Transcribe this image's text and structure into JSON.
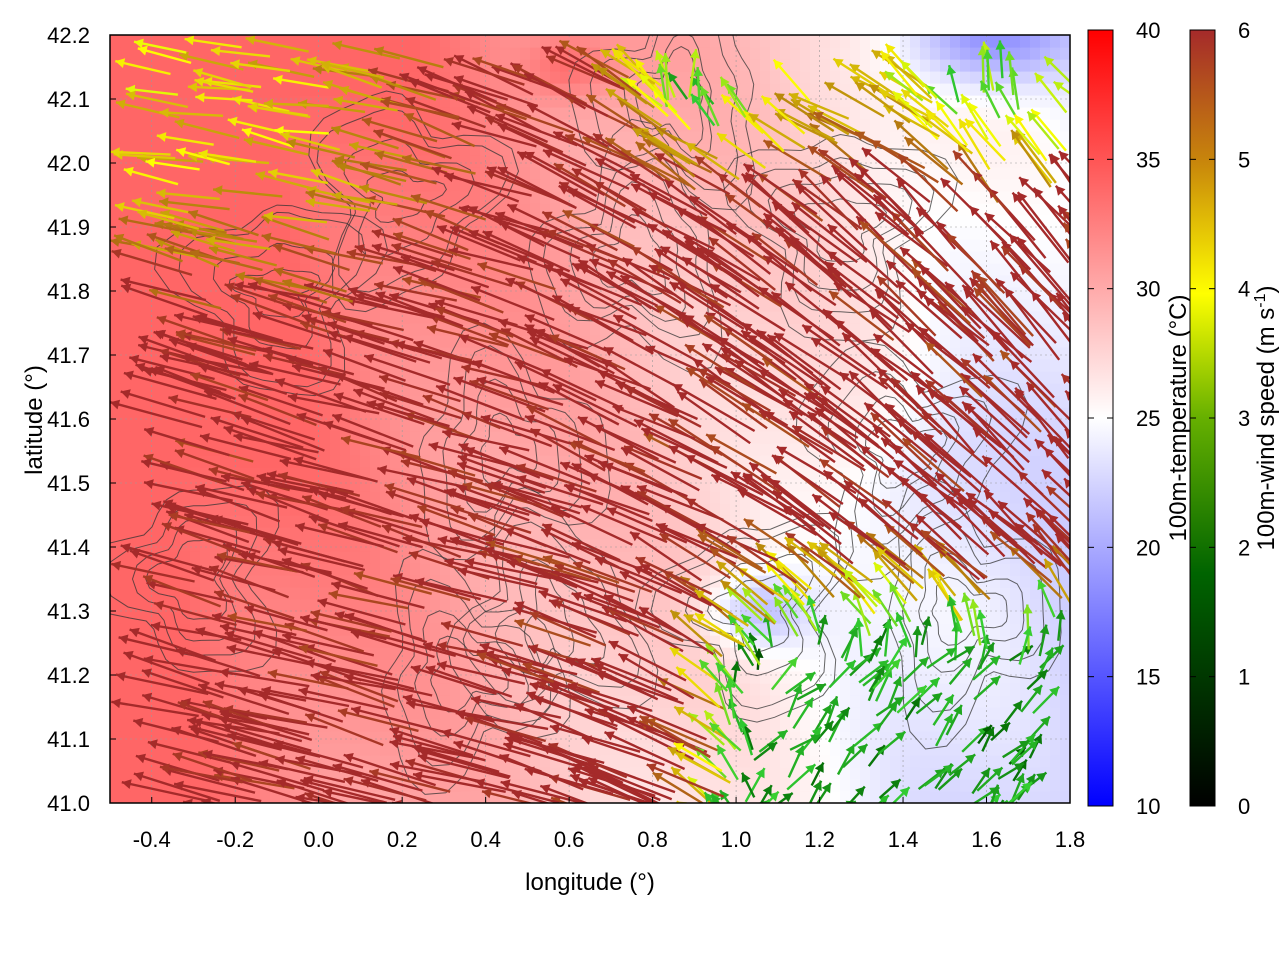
{
  "chart_data": {
    "type": "heatmap",
    "title": "",
    "xlabel": "longitude (°)",
    "ylabel": "latitude (°)",
    "xlim": [
      -0.5,
      1.8
    ],
    "ylim": [
      41.0,
      42.2
    ],
    "xticks": [
      "-0.4",
      "-0.2",
      "0.0",
      "0.2",
      "0.4",
      "0.6",
      "0.8",
      "1.0",
      "1.2",
      "1.4",
      "1.6",
      "1.8"
    ],
    "yticks": [
      "41.0",
      "41.1",
      "41.2",
      "41.3",
      "41.4",
      "41.5",
      "41.6",
      "41.7",
      "41.8",
      "41.9",
      "42.0",
      "42.1",
      "42.2"
    ],
    "grid": true,
    "layers": [
      "100m-temperature field (color shading)",
      "terrain elevation contours (dark gray lines)",
      "100m wind vectors colored by speed"
    ],
    "colorbars": [
      {
        "label": "100m-temperature (°C)",
        "range": [
          10,
          40
        ],
        "ticks": [
          "10",
          "15",
          "20",
          "25",
          "30",
          "35",
          "40"
        ],
        "colors": [
          "#0000ff",
          "#ffffff",
          "#ff0000"
        ]
      },
      {
        "label_prefix": "100m-wind speed (m s",
        "label_sup": "-1",
        "label_suffix": ")",
        "range": [
          0,
          6
        ],
        "ticks": [
          "0",
          "1",
          "2",
          "3",
          "4",
          "5",
          "6"
        ],
        "colors": [
          "#000000",
          "#006400",
          "#32cd32",
          "#ffff00",
          "#b8860b",
          "#a52a2a"
        ]
      }
    ],
    "temperature_regions": [
      {
        "region": "west and north-west",
        "temperature_c": 32
      },
      {
        "region": "central",
        "temperature_c": 27
      },
      {
        "region": "south-east lowland",
        "temperature_c": 22
      },
      {
        "region": "north-east corner",
        "temperature_c": 16
      }
    ],
    "wind_regimes": [
      {
        "region": "south-west",
        "direction": "toward west-north-west",
        "speed_ms": 6
      },
      {
        "region": "central",
        "direction": "toward north-west",
        "speed_ms": 6
      },
      {
        "region": "north-west",
        "direction": "toward west",
        "speed_ms": 4
      },
      {
        "region": "south-east",
        "direction": "toward north-east",
        "speed_ms": 2.5
      }
    ]
  }
}
